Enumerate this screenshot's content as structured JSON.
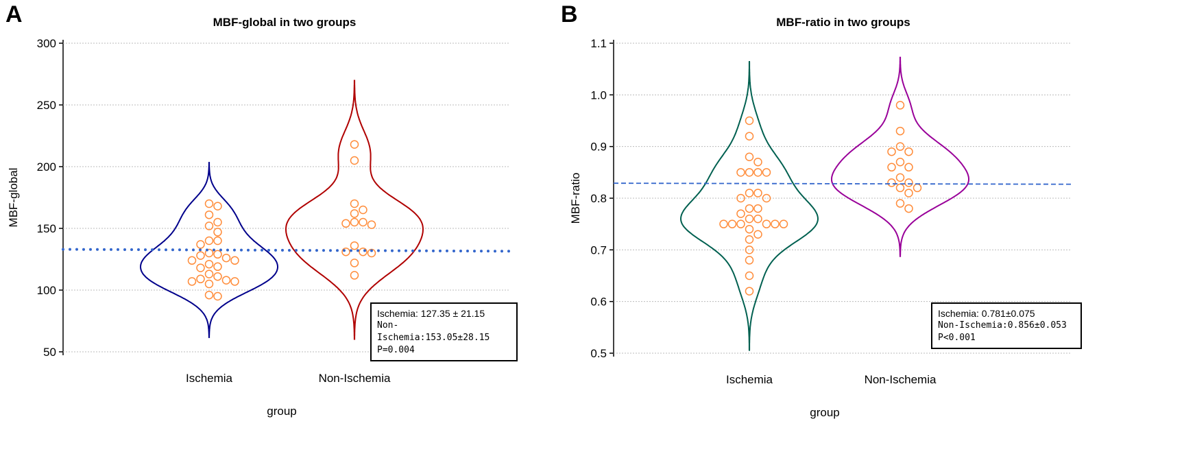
{
  "chart_data": [
    {
      "panel": "A",
      "type": "violin-scatter",
      "title": "MBF-global in two groups",
      "xlabel": "group",
      "ylabel": "MBF-global",
      "ylim": [
        50,
        300
      ],
      "yticks": [
        50,
        100,
        150,
        200,
        250,
        300
      ],
      "categories": [
        "Ischemia",
        "Non-Ischemia"
      ],
      "colors": [
        "#00008B",
        "#B00000"
      ],
      "point_color": "#FF8C3A",
      "series": [
        {
          "name": "Ischemia",
          "values": [
            170,
            168,
            161,
            155,
            152,
            147,
            140,
            140,
            137,
            130,
            129,
            128,
            126,
            124,
            124,
            121,
            119,
            118,
            113,
            111,
            109,
            108,
            107,
            107,
            105,
            96,
            95
          ]
        },
        {
          "name": "Non-Ischemia",
          "values": [
            218,
            205,
            170,
            165,
            162,
            155,
            155,
            154,
            153,
            136,
            131,
            131,
            130,
            122,
            112
          ]
        }
      ],
      "reference_line": {
        "style": "dotted",
        "color": "#3366CC",
        "from": 133,
        "to": 131.5
      },
      "stats": [
        "Ischemia:  127.35 ± 21.15",
        "Non-Ischemia:153.05±28.15",
        "P=0.004"
      ]
    },
    {
      "panel": "B",
      "type": "violin-scatter",
      "title": "MBF-ratio in two groups",
      "xlabel": "group",
      "ylabel": "MBF-ratio",
      "ylim": [
        0.5,
        1.1
      ],
      "yticks": [
        "0.5",
        "0.6",
        "0.7",
        "0.8",
        "0.9",
        "1.0",
        "1.1"
      ],
      "categories": [
        "Ischemia",
        "Non-Ischemia"
      ],
      "colors": [
        "#006050",
        "#990099"
      ],
      "point_color": "#FF8C3A",
      "series": [
        {
          "name": "Ischemia",
          "values": [
            0.95,
            0.92,
            0.88,
            0.87,
            0.85,
            0.85,
            0.85,
            0.85,
            0.81,
            0.81,
            0.8,
            0.8,
            0.78,
            0.78,
            0.77,
            0.76,
            0.76,
            0.75,
            0.75,
            0.75,
            0.75,
            0.75,
            0.75,
            0.74,
            0.73,
            0.72,
            0.7,
            0.68,
            0.65,
            0.62
          ]
        },
        {
          "name": "Non-Ischemia",
          "values": [
            0.98,
            0.93,
            0.9,
            0.89,
            0.89,
            0.87,
            0.86,
            0.86,
            0.84,
            0.83,
            0.83,
            0.82,
            0.82,
            0.81,
            0.79,
            0.78
          ]
        }
      ],
      "reference_line": {
        "style": "dashed",
        "color": "#3366CC",
        "from": 0.829,
        "to": 0.827
      },
      "stats": [
        "Ischemia:  0.781±0.075",
        "Non-Ischemia:0.856±0.053",
        "P<0.001"
      ]
    }
  ]
}
